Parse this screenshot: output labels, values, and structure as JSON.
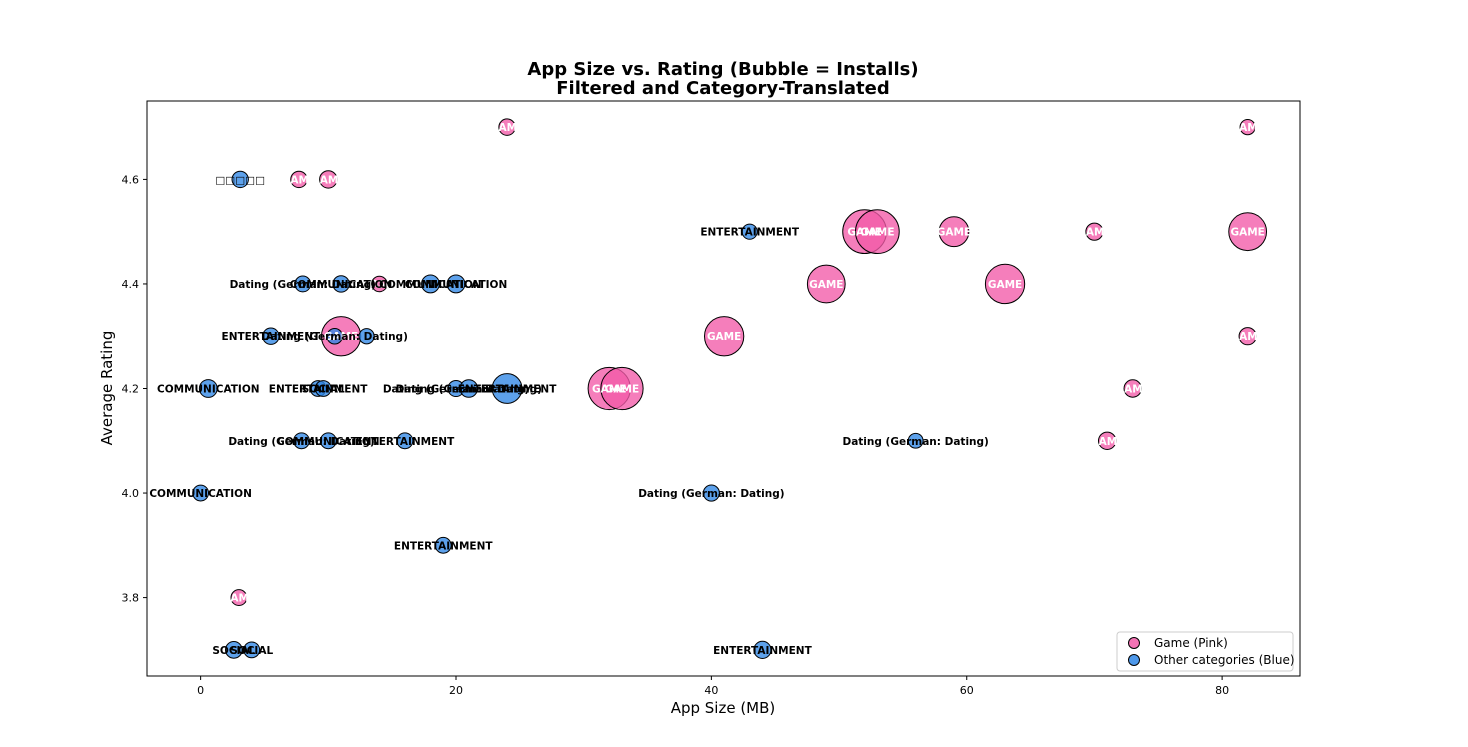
{
  "chart_data": {
    "type": "scatter",
    "title_line1": "App Size vs. Rating (Bubble = Installs)",
    "title_line2": "Filtered and Category-Translated",
    "xlabel": "App Size (MB)",
    "ylabel": "Average Rating",
    "xlim": [
      -4.2,
      86.1
    ],
    "ylim": [
      3.65,
      4.75
    ],
    "xticks": [
      0,
      20,
      40,
      60,
      80
    ],
    "yticks": [
      3.8,
      4.0,
      4.2,
      4.4,
      4.6
    ],
    "ytick_labels": [
      "3.8",
      "4.0",
      "4.2",
      "4.4",
      "4.6"
    ],
    "grid": false,
    "legend_position": "lower-right",
    "colors": {
      "game_fill": "#f25aa8",
      "other_fill": "#2f86e6",
      "edge": "#000000"
    },
    "series": [
      {
        "name": "Game (Pink)",
        "color": "#f25aa8",
        "points": [
          {
            "x": 24,
            "y": 4.7,
            "label": "GAME",
            "bubble": 1.0
          },
          {
            "x": 82,
            "y": 4.7,
            "label": "GAME",
            "bubble": 0.6
          },
          {
            "x": 7.7,
            "y": 4.6,
            "label": "GAME",
            "bubble": 1.0
          },
          {
            "x": 10,
            "y": 4.6,
            "label": "GAME",
            "bubble": 1.4
          },
          {
            "x": 52,
            "y": 4.5,
            "label": "GAME",
            "bubble": 8.5
          },
          {
            "x": 53,
            "y": 4.5,
            "label": "GAME",
            "bubble": 8.5
          },
          {
            "x": 59,
            "y": 4.5,
            "label": "GAME",
            "bubble": 4.0
          },
          {
            "x": 70,
            "y": 4.5,
            "label": "GAME",
            "bubble": 1.3
          },
          {
            "x": 82,
            "y": 4.5,
            "label": "GAME",
            "bubble": 6.5
          },
          {
            "x": 14,
            "y": 4.4,
            "label": "GAME",
            "bubble": 0.7
          },
          {
            "x": 49,
            "y": 4.4,
            "label": "GAME",
            "bubble": 6.5
          },
          {
            "x": 63,
            "y": 4.4,
            "label": "GAME",
            "bubble": 7.0
          },
          {
            "x": 11,
            "y": 4.3,
            "label": "GAME",
            "bubble": 7.0
          },
          {
            "x": 41,
            "y": 4.3,
            "label": "GAME",
            "bubble": 7.0
          },
          {
            "x": 82,
            "y": 4.3,
            "label": "GAME",
            "bubble": 1.3
          },
          {
            "x": 32,
            "y": 4.2,
            "label": "GAME",
            "bubble": 8.0
          },
          {
            "x": 33,
            "y": 4.2,
            "label": "GAME",
            "bubble": 8.0
          },
          {
            "x": 73,
            "y": 4.2,
            "label": "GAME",
            "bubble": 1.4
          },
          {
            "x": 71,
            "y": 4.1,
            "label": "GAME",
            "bubble": 1.4
          },
          {
            "x": 3,
            "y": 3.8,
            "label": "GAME",
            "bubble": 0.8
          }
        ]
      },
      {
        "name": "Other categories (Blue)",
        "color": "#2f86e6",
        "points": [
          {
            "x": 3.1,
            "y": 4.6,
            "label": "□□□□□",
            "bubble": 1.0
          },
          {
            "x": 43,
            "y": 4.5,
            "label": "ENTERTAINMENT",
            "bubble": 0.6
          },
          {
            "x": 8,
            "y": 4.4,
            "label": "Dating (German: Dating)",
            "bubble": 0.8
          },
          {
            "x": 11,
            "y": 4.4,
            "label": "COMMUNICATION",
            "bubble": 1.0
          },
          {
            "x": 18,
            "y": 4.4,
            "label": "COMMUNICATION",
            "bubble": 1.6
          },
          {
            "x": 20,
            "y": 4.4,
            "label": "COMMUNICATION",
            "bubble": 1.6
          },
          {
            "x": 5.5,
            "y": 4.3,
            "label": "ENTERTAINMENT",
            "bubble": 1.0
          },
          {
            "x": 10.5,
            "y": 4.3,
            "label": "Dating (German: Dating)",
            "bubble": 0.7
          },
          {
            "x": 13,
            "y": 4.3,
            "label": "",
            "bubble": 0.6
          },
          {
            "x": 0.6,
            "y": 4.2,
            "label": "COMMUNICATION",
            "bubble": 1.6
          },
          {
            "x": 9.2,
            "y": 4.2,
            "label": "ENTERTAINMENT",
            "bubble": 0.8
          },
          {
            "x": 9.6,
            "y": 4.2,
            "label": "SOCIAL",
            "bubble": 0.8
          },
          {
            "x": 20,
            "y": 4.2,
            "label": "Dating (German: Dating)",
            "bubble": 0.9
          },
          {
            "x": 21,
            "y": 4.2,
            "label": "Dating (German: Dating)",
            "bubble": 1.5
          },
          {
            "x": 24,
            "y": 4.2,
            "label": "ENTERTAINMENT",
            "bubble": 4.0
          },
          {
            "x": 7.9,
            "y": 4.1,
            "label": "Dating (German: Dating)",
            "bubble": 0.8
          },
          {
            "x": 10,
            "y": 4.1,
            "label": "COMMUNICATION",
            "bubble": 0.8
          },
          {
            "x": 16,
            "y": 4.1,
            "label": "ENTERTAINMENT",
            "bubble": 0.8
          },
          {
            "x": 56,
            "y": 4.1,
            "label": "Dating (German: Dating)",
            "bubble": 0.5
          },
          {
            "x": 0,
            "y": 4.0,
            "label": "COMMUNICATION",
            "bubble": 0.8
          },
          {
            "x": 40,
            "y": 4.0,
            "label": "Dating (German: Dating)",
            "bubble": 0.9
          },
          {
            "x": 19,
            "y": 3.9,
            "label": "ENTERTAINMENT",
            "bubble": 0.8
          },
          {
            "x": 2.6,
            "y": 3.7,
            "label": "SOCIAL",
            "bubble": 1.1
          },
          {
            "x": 4.0,
            "y": 3.7,
            "label": "SOCIAL",
            "bubble": 0.8
          },
          {
            "x": 44,
            "y": 3.7,
            "label": "ENTERTAINMENT",
            "bubble": 1.3
          }
        ]
      }
    ]
  }
}
